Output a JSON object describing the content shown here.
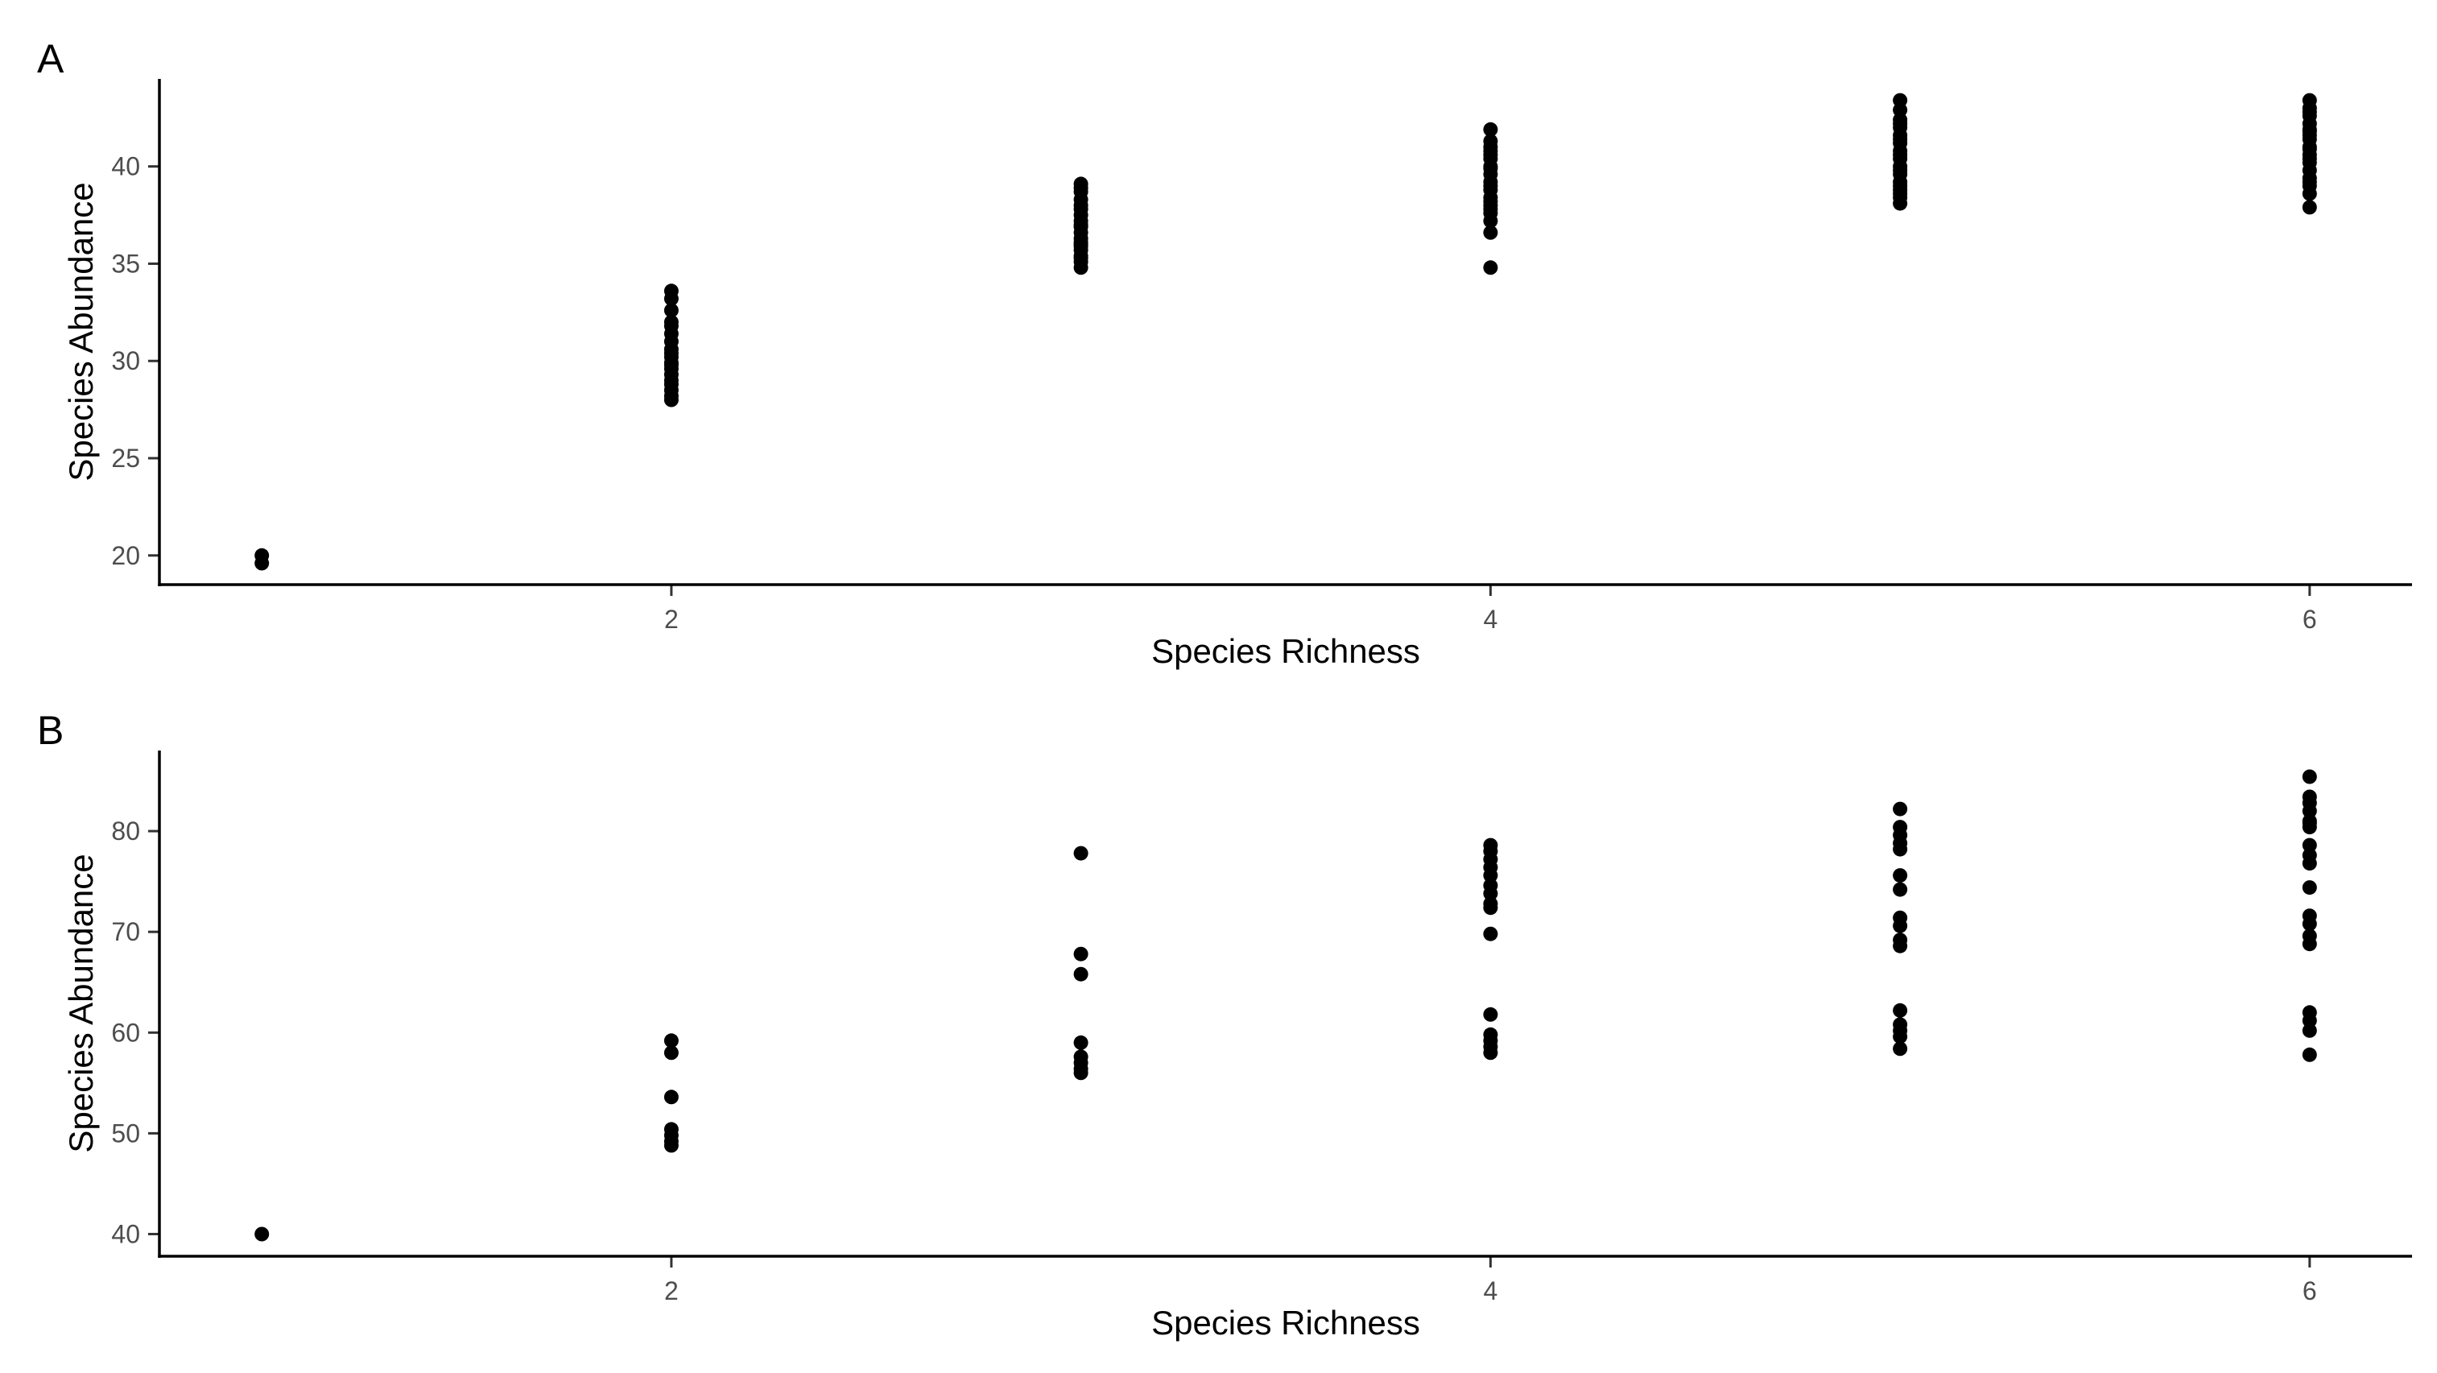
{
  "chart_data": [
    {
      "type": "scatter",
      "panel_label": "A",
      "xlabel": "Species Richness",
      "ylabel": "Species Abundance",
      "xlim": [
        0.75,
        6.25
      ],
      "ylim": [
        18.5,
        44.5
      ],
      "xticks": [
        2,
        4,
        6
      ],
      "yticks": [
        20,
        25,
        30,
        35,
        40
      ],
      "grid": false,
      "x": [
        1,
        1,
        2,
        2,
        2,
        2,
        2,
        2,
        2,
        2,
        2,
        2,
        2,
        2,
        2,
        2,
        2,
        2,
        2,
        2,
        2,
        3,
        3,
        3,
        3,
        3,
        3,
        3,
        3,
        3,
        3,
        3,
        3,
        3,
        3,
        3,
        3,
        3,
        3,
        3,
        3,
        4,
        4,
        4,
        4,
        4,
        4,
        4,
        4,
        4,
        4,
        4,
        4,
        4,
        4,
        4,
        4,
        4,
        4,
        4,
        4,
        5,
        5,
        5,
        5,
        5,
        5,
        5,
        5,
        5,
        5,
        5,
        5,
        5,
        5,
        5,
        5,
        5,
        5,
        5,
        5,
        6,
        6,
        6,
        6,
        6,
        6,
        6,
        6,
        6,
        6,
        6,
        6,
        6,
        6,
        6,
        6,
        6,
        6,
        6,
        6
      ],
      "y": [
        20.0,
        19.6,
        33.6,
        33.2,
        32.6,
        32.0,
        31.4,
        31.0,
        30.6,
        30.2,
        29.9,
        29.6,
        29.3,
        29.0,
        28.8,
        28.5,
        28.2,
        28.0,
        30.4,
        29.8,
        31.8,
        39.1,
        38.7,
        38.3,
        37.8,
        37.5,
        37.2,
        36.9,
        36.6,
        36.3,
        36.0,
        35.7,
        35.4,
        35.1,
        34.8,
        38.0,
        37.0,
        36.1,
        35.9,
        35.3,
        38.9,
        41.9,
        41.3,
        40.8,
        40.4,
        40.0,
        39.6,
        39.2,
        38.8,
        38.4,
        38.0,
        37.6,
        37.2,
        36.6,
        34.8,
        41.0,
        39.9,
        39.0,
        38.2,
        37.8,
        40.6,
        43.4,
        42.9,
        42.4,
        42.0,
        41.6,
        41.2,
        40.8,
        40.4,
        40.0,
        39.6,
        39.2,
        38.8,
        38.4,
        38.1,
        42.2,
        41.4,
        40.6,
        39.8,
        39.0,
        38.6,
        43.4,
        43.0,
        42.6,
        42.2,
        41.8,
        41.4,
        41.0,
        40.6,
        40.2,
        39.8,
        39.4,
        39.0,
        38.6,
        37.9,
        42.8,
        41.6,
        40.4,
        39.2,
        40.9,
        41.9
      ]
    },
    {
      "type": "scatter",
      "panel_label": "B",
      "xlabel": "Species Richness",
      "ylabel": "Species Abundance",
      "xlim": [
        0.75,
        6.25
      ],
      "ylim": [
        37.8,
        88.0
      ],
      "xticks": [
        2,
        4,
        6
      ],
      "yticks": [
        40,
        50,
        60,
        70,
        80
      ],
      "grid": false,
      "x": [
        1,
        2,
        2,
        2,
        2,
        2,
        2,
        2,
        3,
        3,
        3,
        3,
        3,
        3,
        3,
        3,
        4,
        4,
        4,
        4,
        4,
        4,
        4,
        4,
        4,
        4,
        4,
        4,
        4,
        4,
        4,
        5,
        5,
        5,
        5,
        5,
        5,
        5,
        5,
        5,
        5,
        5,
        5,
        5,
        5,
        5,
        5,
        6,
        6,
        6,
        6,
        6,
        6,
        6,
        6,
        6,
        6,
        6,
        6,
        6,
        6,
        6,
        6,
        6,
        6,
        6
      ],
      "y": [
        40.0,
        59.2,
        58.0,
        53.6,
        50.4,
        49.8,
        49.2,
        48.8,
        77.8,
        67.8,
        65.8,
        59.0,
        57.6,
        57.0,
        56.4,
        56.0,
        78.6,
        78.0,
        77.2,
        76.4,
        75.6,
        74.6,
        73.8,
        72.4,
        69.8,
        61.8,
        59.8,
        59.2,
        58.6,
        58.0,
        72.8,
        82.2,
        80.4,
        79.6,
        78.8,
        78.2,
        75.6,
        74.2,
        71.4,
        70.6,
        69.2,
        68.6,
        62.2,
        60.8,
        60.2,
        59.6,
        58.4,
        85.4,
        83.4,
        82.8,
        82.0,
        81.0,
        78.6,
        77.6,
        76.8,
        74.4,
        71.6,
        70.8,
        69.6,
        68.8,
        62.0,
        61.2,
        60.2,
        57.8,
        80.4,
        80.8
      ]
    }
  ]
}
